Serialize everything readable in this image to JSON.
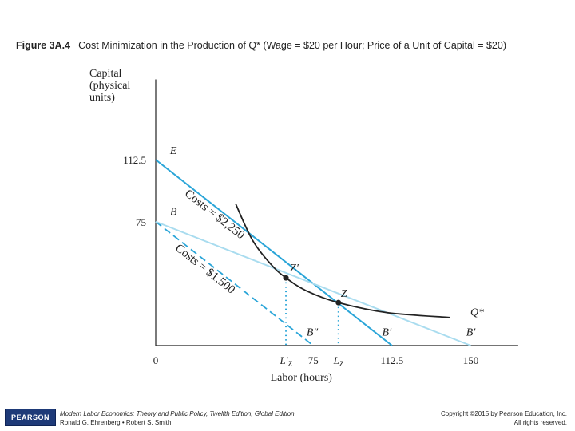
{
  "figure": {
    "label": "Figure 3A.4",
    "caption": "Cost Minimization in the Production of Q* (Wage = $20 per Hour; Price of a Unit of Capital = $20)"
  },
  "chart_data": {
    "type": "line",
    "title": "Figure 3A.4 Cost Minimization in the Production of Q* (Wage = $20 per Hour; Price of a Unit of Capital = $20)",
    "xlabel": "Labor (hours)",
    "ylabel_lines": [
      "Capital",
      "(physical",
      "units)"
    ],
    "xlim": [
      0,
      165
    ],
    "ylim": [
      0,
      165
    ],
    "x_ticks": [
      {
        "value": 0,
        "label": "0"
      },
      {
        "value": 75,
        "label": "75"
      },
      {
        "value": 112.5,
        "label": "112.5"
      },
      {
        "value": 150,
        "label": "150"
      }
    ],
    "x_tick_subscript_labels": [
      {
        "value": 62,
        "main": "L′",
        "sub": "Z"
      },
      {
        "value": 87,
        "main": "L",
        "sub": "Z"
      }
    ],
    "y_ticks": [
      {
        "value": 112.5,
        "label": "112.5"
      },
      {
        "value": 75,
        "label": "75"
      }
    ],
    "series": [
      {
        "name": "Costs = $2,250",
        "kind": "isocost",
        "from": [
          0,
          112.5
        ],
        "to": [
          112.5,
          0
        ],
        "color": "#2aa5d8",
        "style": "solid"
      },
      {
        "name": "Costs = $1,500",
        "kind": "isocost",
        "from": [
          0,
          75
        ],
        "to": [
          75,
          0
        ],
        "color": "#2aa5d8",
        "style": "dashed"
      },
      {
        "name": "B–B′ (150)",
        "kind": "isocost",
        "from": [
          0,
          75
        ],
        "to": [
          150,
          0
        ],
        "color": "#a9dcef",
        "style": "solid"
      },
      {
        "name": "Q*",
        "kind": "isoquant",
        "points": [
          [
            38,
            86
          ],
          [
            46,
            64
          ],
          [
            55,
            49
          ],
          [
            62,
            41
          ],
          [
            72,
            33
          ],
          [
            87,
            26
          ],
          [
            110,
            20
          ],
          [
            140,
            17
          ]
        ],
        "color": "#222222"
      }
    ],
    "points": [
      {
        "name": "Z′",
        "x": 62,
        "y": 41
      },
      {
        "name": "Z",
        "x": 87,
        "y": 26
      }
    ],
    "annotations": [
      {
        "text": "E",
        "x": 3,
        "y": 116
      },
      {
        "text": "B",
        "x": 3,
        "y": 79
      },
      {
        "text": "B″",
        "x": 68,
        "y": 6
      },
      {
        "text": "B′",
        "x": 104,
        "y": 6
      },
      {
        "text": "B′",
        "x": 144,
        "y": 6
      },
      {
        "text": "Q*",
        "x": 146,
        "y": 18
      },
      {
        "text": "Costs = $2,250",
        "kind": "line-label",
        "along": 0
      },
      {
        "text": "Costs = $1,500",
        "kind": "line-label",
        "along": 1
      }
    ]
  },
  "footer": {
    "logo": "PEARSON",
    "book_title": "Modern Labor Economics: Theory and Public Policy, Twelfth Edition, Global Edition",
    "authors": "Ronald G. Ehrenberg • Robert S. Smith",
    "copyright": "Copyright ©2015 by Pearson Education, Inc.",
    "rights": "All rights reserved."
  }
}
